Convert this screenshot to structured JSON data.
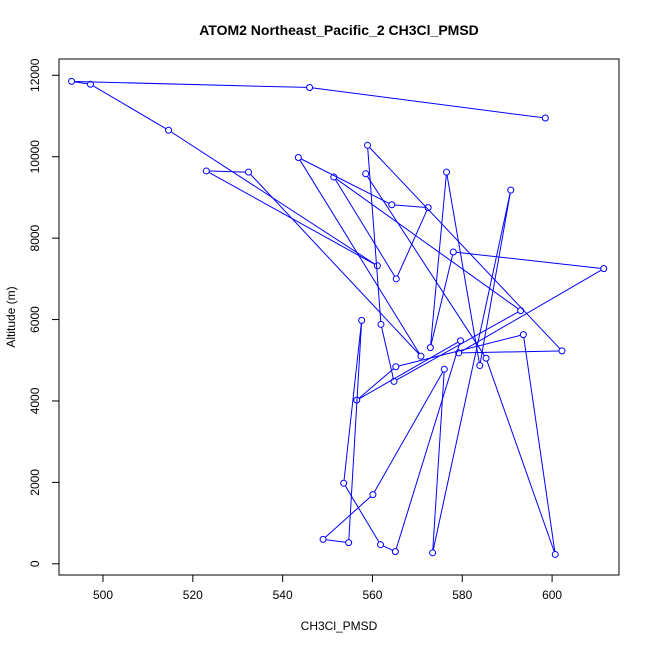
{
  "chart_data": {
    "type": "line",
    "title": "ATOM2 Northeast_Pacific_2 CH3Cl_PMSD",
    "xlabel": "CH3Cl_PMSD",
    "ylabel": "Altitude (m)",
    "xlim": [
      490.2,
      614.9
    ],
    "ylim": [
      -275,
      12400
    ],
    "xticks": [
      500,
      520,
      540,
      560,
      580,
      600
    ],
    "yticks": [
      0,
      2000,
      4000,
      6000,
      8000,
      10000,
      12000
    ],
    "grid": false,
    "markers": "open-circle",
    "colors": {
      "series": "#0000ff"
    },
    "series": [
      {
        "x": [
          598.5,
          546,
          493,
          497.2,
          514.6,
          561.1,
          523,
          532.4,
          570.8,
          543.5,
          564.3,
          572.4,
          565.3,
          551.4,
          593,
          564.8,
          561.9,
          558.9,
          602.2,
          579.2,
          611.5,
          578,
          572.9,
          576.5,
          583.9,
          590.8,
          573.4,
          576,
          560.1,
          549,
          554.7,
          557.6,
          553.6,
          561.8,
          565.1,
          579.6,
          556.5,
          565.2,
          593.6,
          600.7,
          585.3,
          558.5
        ],
        "y": [
          10950,
          11700,
          11850,
          11780,
          10650,
          7320,
          9650,
          9620,
          5100,
          9980,
          8820,
          8750,
          7000,
          9500,
          6220,
          4480,
          5880,
          10280,
          5230,
          5180,
          7250,
          7660,
          5310,
          9620,
          4870,
          9180,
          270,
          4780,
          1700,
          600,
          520,
          5980,
          1980,
          470,
          300,
          5480,
          4020,
          4840,
          5630,
          230,
          5050,
          9580
        ]
      }
    ]
  }
}
